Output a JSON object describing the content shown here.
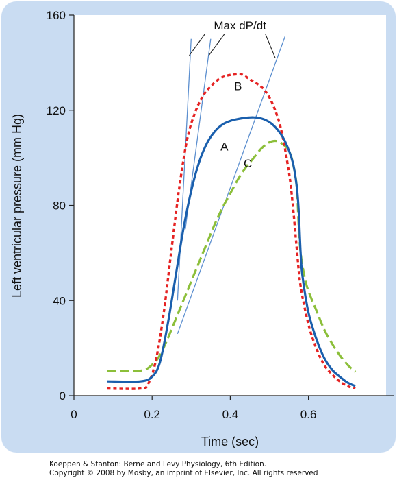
{
  "chart_data": {
    "type": "line",
    "xlabel": "Time (sec)",
    "ylabel": "Left ventricular pressure (mm Hg)",
    "xlim": [
      0,
      0.8
    ],
    "ylim": [
      0,
      160
    ],
    "xticks": [
      0,
      0.2,
      0.4,
      0.6
    ],
    "yticks": [
      0,
      40,
      80,
      120,
      160
    ],
    "grid": false,
    "panel_color": "#c9dcf2",
    "plot_background": "#ffffff",
    "series": [
      {
        "name": "A",
        "color": "#1a5fad",
        "style": "solid",
        "points": [
          [
            0.085,
            6
          ],
          [
            0.17,
            6
          ],
          [
            0.2,
            8
          ],
          [
            0.22,
            14
          ],
          [
            0.24,
            30
          ],
          [
            0.26,
            50
          ],
          [
            0.28,
            70
          ],
          [
            0.3,
            86
          ],
          [
            0.32,
            98
          ],
          [
            0.34,
            106
          ],
          [
            0.36,
            111
          ],
          [
            0.38,
            114
          ],
          [
            0.4,
            115.5
          ],
          [
            0.42,
            116.3
          ],
          [
            0.44,
            116.8
          ],
          [
            0.46,
            117
          ],
          [
            0.48,
            116.5
          ],
          [
            0.5,
            115
          ],
          [
            0.52,
            112
          ],
          [
            0.54,
            107
          ],
          [
            0.56,
            98
          ],
          [
            0.57,
            88
          ],
          [
            0.575,
            78
          ],
          [
            0.58,
            60
          ],
          [
            0.585,
            50
          ],
          [
            0.6,
            35
          ],
          [
            0.62,
            24
          ],
          [
            0.64,
            16
          ],
          [
            0.66,
            11
          ],
          [
            0.68,
            8
          ],
          [
            0.7,
            5.5
          ],
          [
            0.72,
            4
          ]
        ]
      },
      {
        "name": "B",
        "color": "#e52222",
        "style": "dotted",
        "points": [
          [
            0.085,
            3
          ],
          [
            0.17,
            3
          ],
          [
            0.19,
            5
          ],
          [
            0.21,
            15
          ],
          [
            0.23,
            35
          ],
          [
            0.25,
            62
          ],
          [
            0.27,
            88
          ],
          [
            0.29,
            108
          ],
          [
            0.31,
            119
          ],
          [
            0.33,
            126
          ],
          [
            0.35,
            130
          ],
          [
            0.37,
            133
          ],
          [
            0.39,
            134.5
          ],
          [
            0.41,
            135
          ],
          [
            0.43,
            135
          ],
          [
            0.45,
            133
          ],
          [
            0.47,
            131
          ],
          [
            0.49,
            128
          ],
          [
            0.51,
            122
          ],
          [
            0.53,
            112
          ],
          [
            0.55,
            94
          ],
          [
            0.56,
            80
          ],
          [
            0.57,
            62
          ],
          [
            0.58,
            46
          ],
          [
            0.6,
            30
          ],
          [
            0.62,
            20
          ],
          [
            0.64,
            13
          ],
          [
            0.66,
            9
          ],
          [
            0.68,
            6
          ],
          [
            0.7,
            4
          ],
          [
            0.72,
            3
          ]
        ]
      },
      {
        "name": "C",
        "color": "#8cbf3a",
        "style": "dashed",
        "points": [
          [
            0.085,
            10.5
          ],
          [
            0.17,
            10.5
          ],
          [
            0.2,
            13
          ],
          [
            0.22,
            17
          ],
          [
            0.24,
            24
          ],
          [
            0.26,
            32
          ],
          [
            0.28,
            40
          ],
          [
            0.3,
            48
          ],
          [
            0.32,
            56
          ],
          [
            0.34,
            64
          ],
          [
            0.36,
            72
          ],
          [
            0.38,
            79
          ],
          [
            0.4,
            85
          ],
          [
            0.42,
            91
          ],
          [
            0.44,
            96
          ],
          [
            0.46,
            100
          ],
          [
            0.48,
            104
          ],
          [
            0.5,
            106.5
          ],
          [
            0.52,
            107
          ],
          [
            0.54,
            105
          ],
          [
            0.55,
            103
          ],
          [
            0.56,
            98
          ],
          [
            0.57,
            88
          ],
          [
            0.575,
            72
          ],
          [
            0.58,
            60
          ],
          [
            0.59,
            50
          ],
          [
            0.6,
            44
          ],
          [
            0.62,
            36
          ],
          [
            0.64,
            28
          ],
          [
            0.66,
            22
          ],
          [
            0.68,
            17
          ],
          [
            0.7,
            13
          ],
          [
            0.72,
            10
          ]
        ]
      }
    ],
    "tangents": [
      {
        "color": "#5c8fcf",
        "from": [
          0.265,
          40
        ],
        "to": [
          0.3,
          150
        ]
      },
      {
        "color": "#5c8fcf",
        "from": [
          0.285,
          70
        ],
        "to": [
          0.35,
          150
        ]
      },
      {
        "color": "#5c8fcf",
        "from": [
          0.265,
          26
        ],
        "to": [
          0.54,
          151
        ]
      }
    ],
    "annotations": [
      {
        "text": "Max dP/dt",
        "x": 0.425,
        "y": 154
      },
      {
        "text": "B",
        "x": 0.42,
        "y": 128.5
      },
      {
        "text": "A",
        "x": 0.385,
        "y": 103
      },
      {
        "text": "C",
        "x": 0.445,
        "y": 96
      }
    ],
    "leader_lines": [
      {
        "from": [
          0.335,
          152
        ],
        "to": [
          0.295,
          143
        ]
      },
      {
        "from": [
          0.385,
          152
        ],
        "to": [
          0.345,
          143
        ]
      },
      {
        "from": [
          0.49,
          152
        ],
        "to": [
          0.515,
          142
        ]
      }
    ]
  },
  "footer": {
    "line1": "Koeppen & Stanton: Berne and Levy Physiology, 6th Edition.",
    "line2": "Copyright © 2008 by Mosby, an imprint of Elsevier, Inc. All rights reserved"
  }
}
